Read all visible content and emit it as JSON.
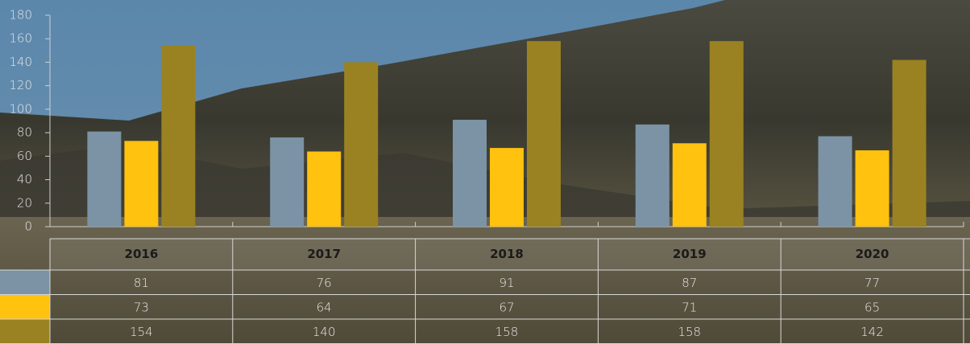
{
  "chart_data": {
    "type": "bar",
    "categories": [
      "2016",
      "2017",
      "2018",
      "2019",
      "2020"
    ],
    "series": [
      {
        "color": "#7b93a5",
        "values": [
          81,
          76,
          91,
          87,
          77
        ]
      },
      {
        "color": "#ffc20e",
        "values": [
          73,
          64,
          67,
          71,
          65
        ]
      },
      {
        "color": "#9a8222",
        "values": [
          154,
          140,
          158,
          158,
          142
        ]
      }
    ],
    "ylim": [
      0,
      180
    ],
    "yticks": [
      0,
      20,
      40,
      60,
      80,
      100,
      120,
      140,
      160,
      180
    ]
  }
}
